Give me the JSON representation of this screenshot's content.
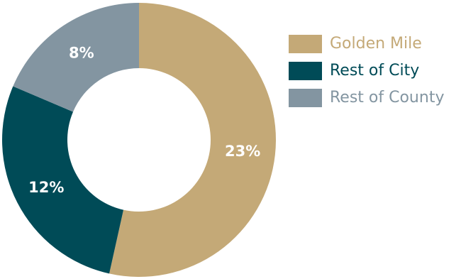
{
  "chart_data": {
    "type": "pie",
    "title": "",
    "donut": true,
    "start_angle_deg": 0,
    "categories": [
      "Golden Mile",
      "Rest of City",
      "Rest of County"
    ],
    "values": [
      23,
      12,
      8
    ],
    "labels": [
      "23%",
      "12%",
      "8%"
    ],
    "colors": [
      "#c4a977",
      "#004b57",
      "#8395a1"
    ],
    "legend_position": "right"
  },
  "legend": [
    {
      "label": "Golden Mile",
      "color": "#c4a977"
    },
    {
      "label": "Rest of City",
      "color": "#004b57"
    },
    {
      "label": "Rest of County",
      "color": "#8395a1"
    }
  ]
}
